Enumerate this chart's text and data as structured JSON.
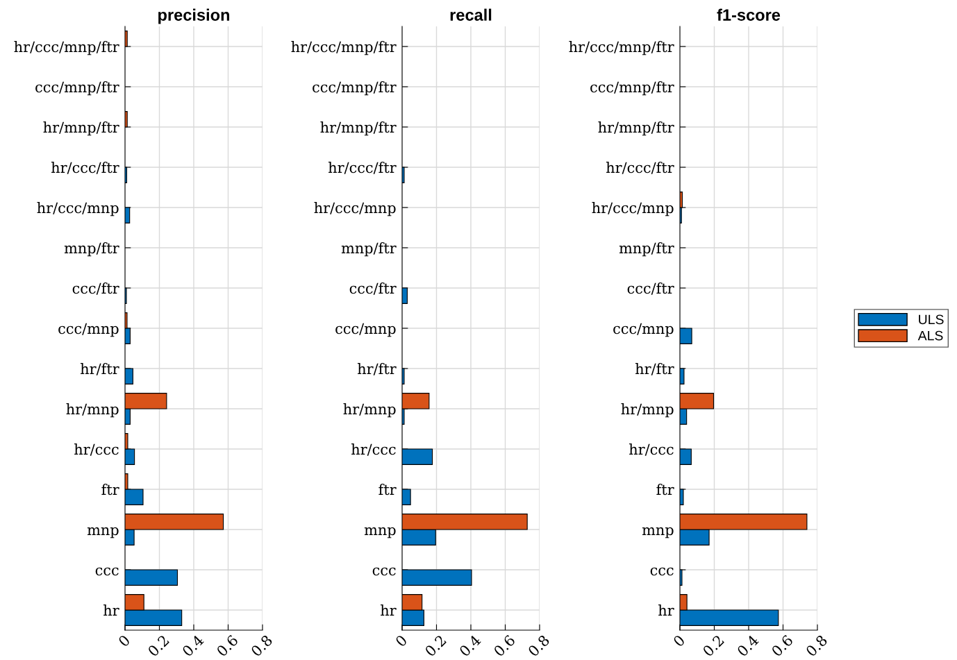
{
  "chart_data": [
    {
      "type": "bar",
      "orientation": "horizontal",
      "title": "precision",
      "categories": [
        "hr/ccc/mnp/ftr",
        "ccc/mnp/ftr",
        "hr/mnp/ftr",
        "hr/ccc/ftr",
        "hr/ccc/mnp",
        "mnp/ftr",
        "ccc/ftr",
        "ccc/mnp",
        "hr/ftr",
        "hr/mnp",
        "hr/ccc",
        "ftr",
        "mnp",
        "ccc",
        "hr"
      ],
      "series": [
        {
          "color": "#0072bd",
          "values": [
            0.0,
            0.0,
            0.0,
            0.01,
            0.027,
            0.0,
            0.008,
            0.03,
            0.046,
            0.03,
            0.055,
            0.105,
            0.053,
            0.305,
            0.33
          ]
        },
        {
          "color": "#d95319",
          "values": [
            0.013,
            0.0,
            0.013,
            0.0,
            0.0,
            0.0,
            0.0,
            0.012,
            0.0,
            0.242,
            0.016,
            0.016,
            0.572,
            0.0,
            0.11
          ]
        }
      ],
      "xlim": [
        0,
        0.8
      ],
      "xticks": [
        0,
        0.2,
        0.4,
        0.6,
        0.8
      ],
      "grid": true
    },
    {
      "type": "bar",
      "orientation": "horizontal",
      "title": "recall",
      "categories": [
        "hr/ccc/mnp/ftr",
        "ccc/mnp/ftr",
        "hr/mnp/ftr",
        "hr/ccc/ftr",
        "hr/ccc/mnp",
        "mnp/ftr",
        "ccc/ftr",
        "ccc/mnp",
        "hr/ftr",
        "hr/mnp",
        "hr/ccc",
        "ftr",
        "mnp",
        "ccc",
        "hr"
      ],
      "series": [
        {
          "color": "#0072bd",
          "values": [
            0.0,
            0.0,
            0.0,
            0.012,
            0.0,
            0.0,
            0.03,
            0.0,
            0.012,
            0.012,
            0.176,
            0.049,
            0.195,
            0.404,
            0.127
          ]
        },
        {
          "color": "#d95319",
          "values": [
            0.0,
            0.0,
            0.0,
            0.0,
            0.0,
            0.0,
            0.0,
            0.0,
            0.0,
            0.157,
            0.0,
            0.0,
            0.728,
            0.0,
            0.116
          ]
        }
      ],
      "xlim": [
        0,
        0.8
      ],
      "xticks": [
        0,
        0.2,
        0.4,
        0.6,
        0.8
      ],
      "grid": true
    },
    {
      "type": "bar",
      "orientation": "horizontal",
      "title": "f1-score",
      "categories": [
        "hr/ccc/mnp/ftr",
        "ccc/mnp/ftr",
        "hr/mnp/ftr",
        "hr/ccc/ftr",
        "hr/ccc/mnp",
        "mnp/ftr",
        "ccc/ftr",
        "ccc/mnp",
        "hr/ftr",
        "hr/mnp",
        "hr/ccc",
        "ftr",
        "mnp",
        "ccc",
        "hr"
      ],
      "series": [
        {
          "name": "ULS",
          "color": "#0072bd",
          "values": [
            0.0,
            0.0,
            0.0,
            0.0,
            0.009,
            0.0,
            0.0,
            0.069,
            0.024,
            0.039,
            0.066,
            0.02,
            0.17,
            0.012,
            0.573
          ]
        },
        {
          "name": "ALS",
          "color": "#d95319",
          "values": [
            0.0,
            0.0,
            0.0,
            0.0,
            0.014,
            0.0,
            0.0,
            0.0,
            0.0,
            0.196,
            0.0,
            0.0,
            0.739,
            0.0,
            0.041
          ]
        }
      ],
      "xlim": [
        0,
        0.8
      ],
      "xticks": [
        0,
        0.2,
        0.4,
        0.6,
        0.8
      ],
      "grid": true,
      "legend": "right"
    }
  ]
}
